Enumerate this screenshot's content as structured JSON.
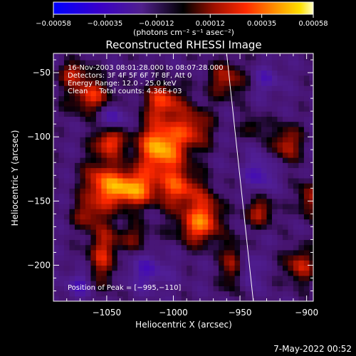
{
  "chart_data": {
    "type": "heatmap",
    "title": "Reconstructed RHESSI Image",
    "xlabel": "Heliocentric X (arcsec)",
    "ylabel": "Heliocentric Y (arcsec)",
    "xlim": [
      -1090,
      -895
    ],
    "ylim": [
      -228,
      -35
    ],
    "xticks": [
      -1050,
      -1000,
      -950,
      -900
    ],
    "xtick_labels": [
      "−1050",
      "−1000",
      "−950",
      "−900"
    ],
    "yticks": [
      -50,
      -100,
      -150,
      -200
    ],
    "ytick_labels": [
      "−50",
      "−100",
      "−150",
      "−200"
    ],
    "colorbar": {
      "min": -0.00058,
      "max": 0.00058,
      "ticks": [
        -0.00058,
        -0.00035,
        -0.00012,
        0.00012,
        0.00035,
        0.00058
      ],
      "tick_labels": [
        "−0.00058",
        "−0.00035",
        "−0.00012",
        "0.00012",
        "0.00035",
        "0.00058"
      ],
      "units": "(photons cm⁻² s⁻¹ asec⁻²)"
    },
    "annotations": [
      "16-Nov-2003 08:01:28.000 to 08:07:28.000",
      "Detectors: 3F 4F 5F 6F 7F 8F, Att 0",
      "Energy Range: 12.0 - 25.0 keV",
      "Clean     Total counts: 4.36E+03"
    ],
    "peak_label": "Position of Peak = [−995,−110]",
    "peak": {
      "x": -995,
      "y": -110
    },
    "limb_line": [
      {
        "x": -960,
        "y": -35
      },
      {
        "x": -940,
        "y": -228
      }
    ],
    "sources": [
      {
        "x": -1010,
        "y": -108,
        "amp": 1.0,
        "sx": 12,
        "sy": 14
      },
      {
        "x": -1032,
        "y": -140,
        "amp": 0.95,
        "sx": 14,
        "sy": 10
      },
      {
        "x": -1008,
        "y": -72,
        "amp": 0.65,
        "sx": 10,
        "sy": 10
      },
      {
        "x": -1048,
        "y": -103,
        "amp": 0.7,
        "sx": 8,
        "sy": 8
      },
      {
        "x": -1062,
        "y": -68,
        "amp": 0.6,
        "sx": 12,
        "sy": 10
      },
      {
        "x": -1075,
        "y": -50,
        "amp": 0.5,
        "sx": 8,
        "sy": 6
      },
      {
        "x": -1055,
        "y": -135,
        "amp": 0.55,
        "sx": 10,
        "sy": 14
      },
      {
        "x": -1065,
        "y": -160,
        "amp": 0.4,
        "sx": 8,
        "sy": 8
      },
      {
        "x": -1053,
        "y": -192,
        "amp": 0.55,
        "sx": 8,
        "sy": 18
      },
      {
        "x": -995,
        "y": -140,
        "amp": 0.65,
        "sx": 10,
        "sy": 12
      },
      {
        "x": -985,
        "y": -170,
        "amp": 0.5,
        "sx": 10,
        "sy": 10
      },
      {
        "x": -975,
        "y": -160,
        "amp": 0.55,
        "sx": 8,
        "sy": 14
      },
      {
        "x": -955,
        "y": -200,
        "amp": 0.55,
        "sx": 6,
        "sy": 14
      },
      {
        "x": -985,
        "y": -93,
        "amp": 0.55,
        "sx": 10,
        "sy": 12
      },
      {
        "x": -960,
        "y": -55,
        "amp": 0.5,
        "sx": 10,
        "sy": 10
      },
      {
        "x": -915,
        "y": -105,
        "amp": 0.55,
        "sx": 8,
        "sy": 10
      },
      {
        "x": -935,
        "y": -158,
        "amp": 0.5,
        "sx": 8,
        "sy": 8
      },
      {
        "x": -898,
        "y": -148,
        "amp": 0.5,
        "sx": 6,
        "sy": 10
      },
      {
        "x": -905,
        "y": -200,
        "amp": 0.55,
        "sx": 8,
        "sy": 10
      },
      {
        "x": -940,
        "y": -92,
        "amp": 0.35,
        "sx": 6,
        "sy": 6
      },
      {
        "x": -1030,
        "y": -178,
        "amp": 0.35,
        "sx": 10,
        "sy": 8
      },
      {
        "x": -1045,
        "y": -85,
        "amp": -0.4,
        "sx": 8,
        "sy": 8
      },
      {
        "x": -1020,
        "y": -205,
        "amp": -0.35,
        "sx": 12,
        "sy": 10
      },
      {
        "x": -935,
        "y": -128,
        "amp": -0.4,
        "sx": 8,
        "sy": 10
      },
      {
        "x": -945,
        "y": -205,
        "amp": -0.35,
        "sx": 6,
        "sy": 10
      },
      {
        "x": -930,
        "y": -55,
        "amp": -0.3,
        "sx": 8,
        "sy": 8
      },
      {
        "x": -1070,
        "y": -215,
        "amp": -0.35,
        "sx": 8,
        "sy": 8
      }
    ]
  },
  "footer": {
    "date": "7-May-2022 00:52"
  }
}
